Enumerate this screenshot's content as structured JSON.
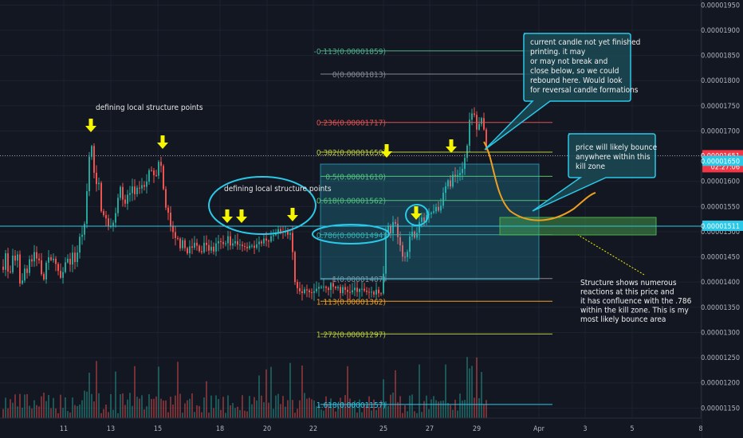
{
  "chart_data": {
    "type": "candlestick",
    "y_range": [
      1.13e-05,
      1.96e-05
    ],
    "y_ticks": [
      "0.00001950",
      "0.00001900",
      "0.00001850",
      "0.00001800",
      "0.00001750",
      "0.00001700",
      "0.00001650",
      "0.00001600",
      "0.00001550",
      "0.00001500",
      "0.00001450",
      "0.00001400",
      "0.00001350",
      "0.00001300",
      "0.00001250",
      "0.00001200",
      "0.00001150"
    ],
    "x_ticks": [
      {
        "label": "11",
        "date": "Mar 11"
      },
      {
        "label": "13",
        "date": "Mar 13"
      },
      {
        "label": "15",
        "date": "Mar 15"
      },
      {
        "label": "18",
        "date": "Mar 18"
      },
      {
        "label": "20",
        "date": "Mar 20"
      },
      {
        "label": "22",
        "date": "Mar 22"
      },
      {
        "label": "25",
        "date": "Mar 25"
      },
      {
        "label": "27",
        "date": "Mar 27"
      },
      {
        "label": "29",
        "date": "Mar 29"
      },
      {
        "label": "Apr",
        "date": "Apr 1"
      },
      {
        "label": "3",
        "date": "Apr 3"
      },
      {
        "label": "5",
        "date": "Apr 5"
      },
      {
        "label": "8",
        "date": "Apr 8"
      }
    ],
    "price_badges": [
      {
        "label": "0.00001651",
        "sub": "02:27:06",
        "price": 1.651e-05,
        "color": "#f23645"
      },
      {
        "label": "0.00001650",
        "sub": "",
        "price": 1.64e-05,
        "color": "#2bc8e8"
      },
      {
        "label": "0.00001511",
        "sub": "",
        "price": 1.511e-05,
        "color": "#2bc8e8"
      }
    ],
    "fib_levels": [
      {
        "label": "-0.113(0.00001859)",
        "price": 1.859e-05,
        "color": "#4caf8a"
      },
      {
        "label": "0(0.00001813)",
        "price": 1.813e-05,
        "color": "#868993"
      },
      {
        "label": "0.236(0.00001717)",
        "price": 1.717e-05,
        "color": "#e05252"
      },
      {
        "label": "0.382(0.00001658)",
        "price": 1.658e-05,
        "color": "#b8c93d"
      },
      {
        "label": "0.5(0.00001610)",
        "price": 1.61e-05,
        "color": "#5fbf5f"
      },
      {
        "label": "0.618(0.00001562)",
        "price": 1.562e-05,
        "color": "#5fbf5f"
      },
      {
        "label": "0.786(0.00001494)",
        "price": 1.494e-05,
        "color": "#3aa7a0"
      },
      {
        "label": "1(0.00001407)",
        "price": 1.407e-05,
        "color": "#868993"
      },
      {
        "label": "1.113(0.00001362)",
        "price": 1.362e-05,
        "color": "#f0a020"
      },
      {
        "label": "1.272(0.00001297)",
        "price": 1.297e-05,
        "color": "#b8c93d"
      },
      {
        "label": "1.618(0.00001157)",
        "price": 1.157e-05,
        "color": "#2bc8e8"
      }
    ],
    "annotations": {
      "structure_label_1": "defining local structure points",
      "structure_label_2": "defining local structure points",
      "callout_candle": [
        "current candle not yet finished",
        "printing.  it  may",
        "or may not break and",
        "close below, so we could",
        "rebound here.  Would look",
        "for reversal candle formations"
      ],
      "callout_bounce": [
        "price will likely bounce",
        "anywhere within this",
        "kill zone"
      ],
      "note_structure": [
        "Structure shows numerous",
        "reactions at this price and",
        "it has confluence with the .786",
        "within the kill zone.  This is my",
        "most likely bounce area"
      ]
    },
    "colors": {
      "background": "#131722",
      "up": "#26a69a",
      "down": "#ef5350",
      "arrow": "#f5f500",
      "callout": "#2bc8e8",
      "zone": "#4caf50",
      "projection": "#f0a020"
    }
  }
}
